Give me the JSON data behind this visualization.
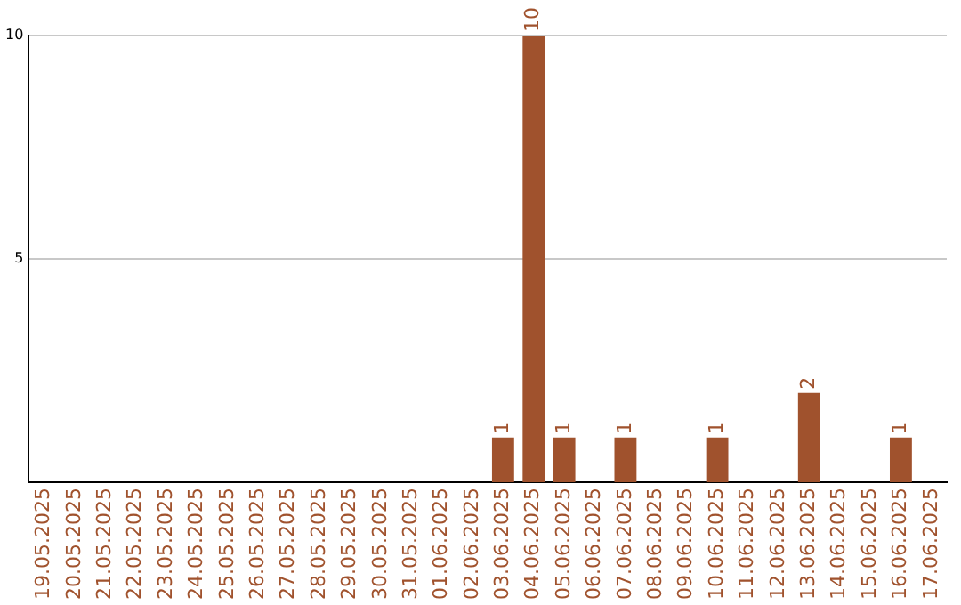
{
  "chart_data": {
    "type": "bar",
    "categories": [
      "19.05.2025",
      "20.05.2025",
      "21.05.2025",
      "22.05.2025",
      "23.05.2025",
      "24.05.2025",
      "25.05.2025",
      "26.05.2025",
      "27.05.2025",
      "28.05.2025",
      "29.05.2025",
      "30.05.2025",
      "31.05.2025",
      "01.06.2025",
      "02.06.2025",
      "03.06.2025",
      "04.06.2025",
      "05.06.2025",
      "06.06.2025",
      "07.06.2025",
      "08.06.2025",
      "09.06.2025",
      "10.06.2025",
      "11.06.2025",
      "12.06.2025",
      "13.06.2025",
      "14.06.2025",
      "15.06.2025",
      "16.06.2025",
      "17.06.2025"
    ],
    "values": [
      0,
      0,
      0,
      0,
      0,
      0,
      0,
      0,
      0,
      0,
      0,
      0,
      0,
      0,
      0,
      1,
      10,
      1,
      0,
      1,
      0,
      0,
      1,
      0,
      0,
      2,
      0,
      0,
      1,
      0
    ],
    "value_labels": [
      null,
      null,
      null,
      null,
      null,
      null,
      null,
      null,
      null,
      null,
      null,
      null,
      null,
      null,
      null,
      "1",
      "10",
      "1",
      null,
      "1",
      null,
      null,
      "1",
      null,
      null,
      "2",
      null,
      null,
      "1",
      null
    ],
    "color": "#a0522d",
    "ylim": [
      0,
      10
    ],
    "yticks": [
      5,
      10
    ],
    "grid": "y",
    "legend": false
  }
}
